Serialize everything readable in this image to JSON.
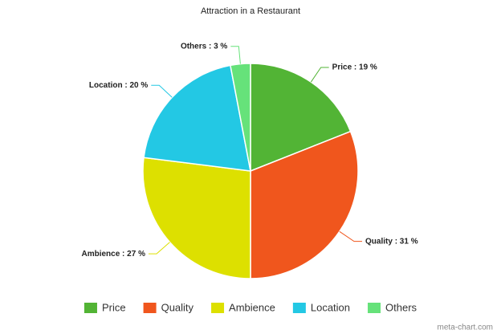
{
  "chart_data": {
    "type": "pie",
    "title": "Attraction in a Restaurant",
    "categories": [
      "Price",
      "Quality",
      "Ambience",
      "Location",
      "Others"
    ],
    "values": [
      19,
      31,
      27,
      20,
      3
    ],
    "value_labels": [
      "Price : 19 %",
      "Quality : 31 %",
      "Ambience : 27 %",
      "Location : 20 %",
      "Others : 3 %"
    ],
    "colors": [
      "#52b435",
      "#f0561d",
      "#dde000",
      "#23c8e4",
      "#66e27a"
    ],
    "legend": "bottom",
    "credit": "meta-chart.com"
  }
}
